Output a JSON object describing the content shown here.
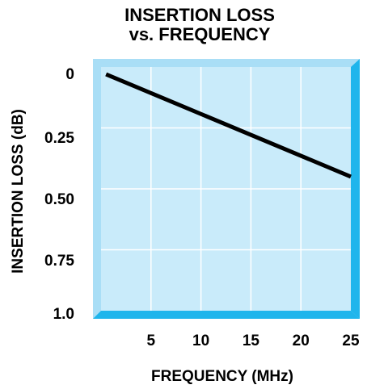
{
  "chart_data": {
    "type": "line",
    "title_line1": "INSERTION LOSS",
    "title_line2": "vs. FREQUENCY",
    "xlabel": "FREQUENCY (MHz)",
    "ylabel": "INSERTION LOSS (dB)",
    "xlim": [
      0,
      25
    ],
    "ylim": [
      0,
      1.0
    ],
    "y_inverted": true,
    "x_ticks": [
      "5",
      "10",
      "15",
      "20",
      "25"
    ],
    "y_ticks": [
      "0",
      "0.25",
      "0.50",
      "0.75",
      "1.0"
    ],
    "grid": true,
    "series": [
      {
        "x": [
          0.5,
          25
        ],
        "y": [
          0.03,
          0.45
        ]
      }
    ],
    "colors": {
      "plot_fill": "#c9ebfa",
      "bevel_light": "#a9def6",
      "bevel_dark": "#1fb5ec",
      "grid": "#ffffff",
      "line": "#000000"
    }
  }
}
